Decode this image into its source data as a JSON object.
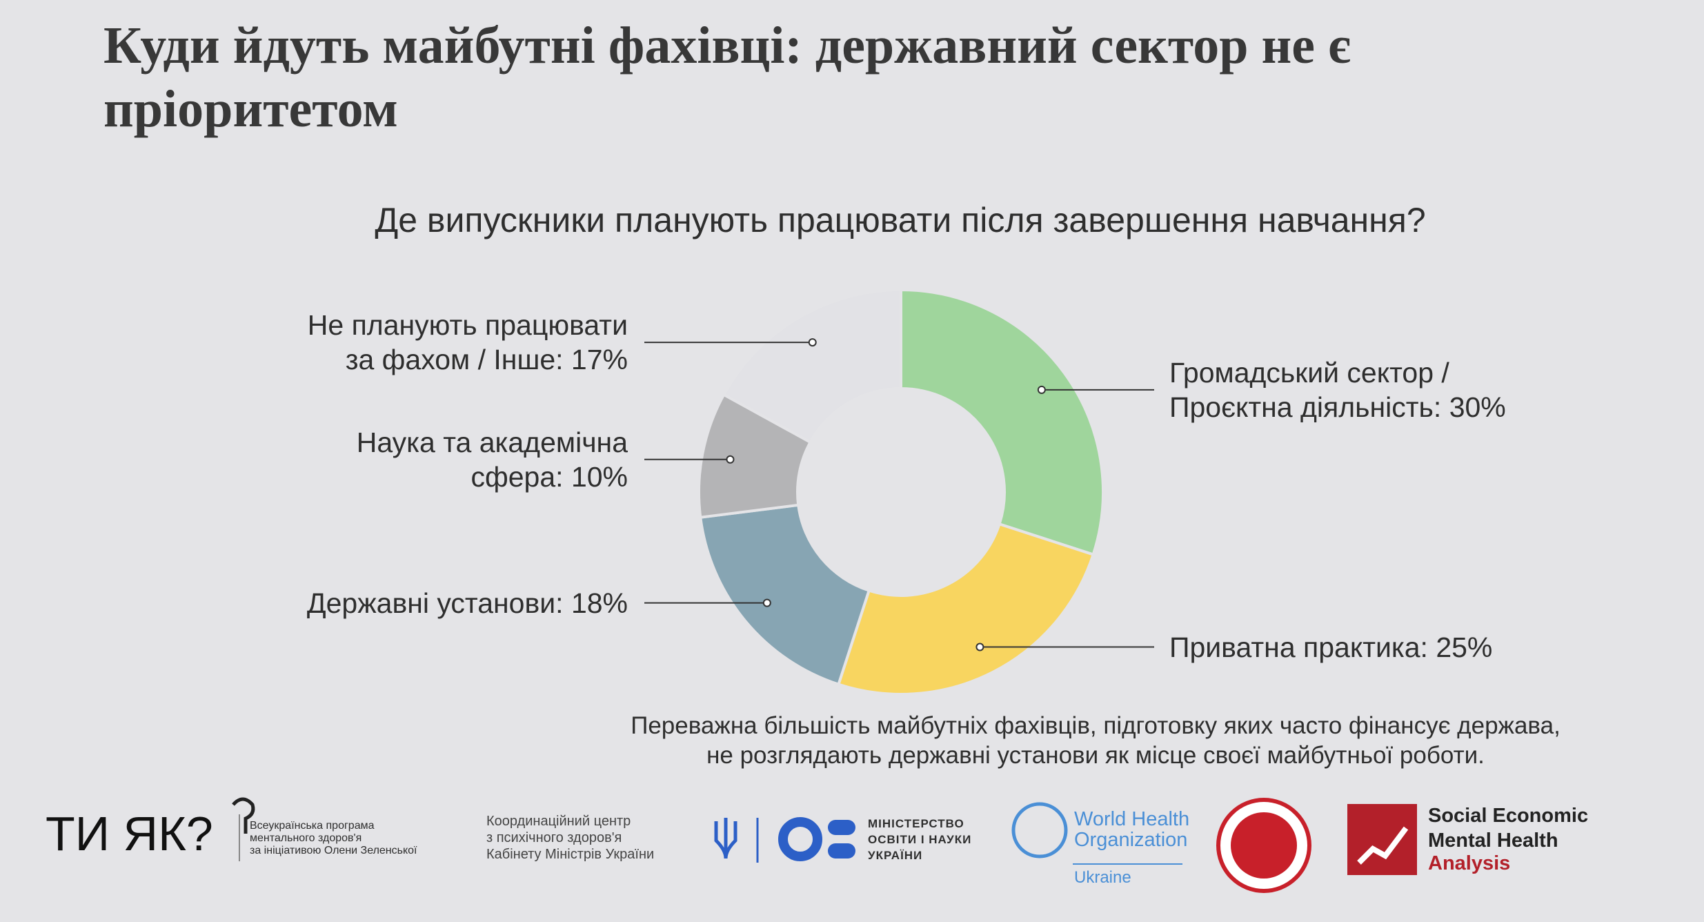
{
  "slide_title": "Куди йдуть майбутні фахівці: державний сектор не є\nпріоритетом",
  "chart_data": {
    "type": "donut",
    "title": "Де випускники планують працювати після завершення навчання?",
    "categories": [
      "Громадський сектор /\nПроєктна діяльність: 30%",
      "Приватна практика: 25%",
      "Державні установи: 18%",
      "Наука та академічна\nсфера: 10%",
      "Не планують працювати\nза фахом / Інше: 17%"
    ],
    "values": [
      30,
      25,
      18,
      10,
      17
    ],
    "colors": [
      "#9fd59c",
      "#f8d560",
      "#87a5b3",
      "#b4b4b6",
      "#e2e2e6"
    ]
  },
  "note": "Переважна більшість майбутніх фахівців, підготовку яких часто фінансує держава,\nне розглядають державні установи як місце своєї майбутньої роботи.",
  "footer": {
    "tyiak": "ТИ ЯК?",
    "tyiak_text": "Всеукраїнська програма\nментального здоров'я\nза ініціативою Олени Зеленської",
    "center": "Координаційний центр\nз психічного здоров'я\nКабінету Міністрів України",
    "mon": "МІНІСТЕРСТВО\nОСВІТИ І НАУКИ\nУКРАЇНИ",
    "who": "World Health\nOrganization",
    "who_country": "Ukraine",
    "semha": "Social Economic\nMental Health",
    "semha_sub": "Analysis"
  }
}
